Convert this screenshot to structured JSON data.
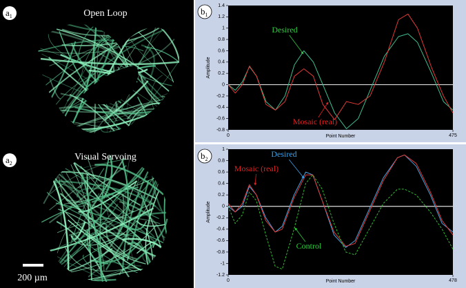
{
  "image_panels": [
    {
      "letter": "a",
      "index": "1",
      "title": "Open Loop"
    },
    {
      "letter": "a",
      "index": "2",
      "title": "Visual Servoing"
    }
  ],
  "scale_bar": "200 µm",
  "chart_data": [
    {
      "type": "line",
      "panel_letter": "b",
      "panel_index": "1",
      "x_label": "Point Number",
      "y_label": "Amplitude",
      "x": [
        0,
        15,
        30,
        45,
        60,
        80,
        100,
        120,
        140,
        160,
        180,
        200,
        225,
        250,
        275,
        300,
        330,
        360,
        380,
        400,
        430,
        455,
        475
      ],
      "series": [
        {
          "name": "Desired",
          "color": "#3fbf8f",
          "dash": false,
          "values": [
            0,
            -0.1,
            0.05,
            0.32,
            0.15,
            -0.3,
            -0.45,
            -0.2,
            0.35,
            0.6,
            0.4,
            0.0,
            -0.5,
            -0.78,
            -0.6,
            -0.1,
            0.5,
            0.85,
            0.9,
            0.75,
            0.2,
            -0.3,
            -0.45
          ]
        },
        {
          "name": "Mosaic (real)",
          "color": "#e03a3a",
          "dash": false,
          "values": [
            0,
            -0.15,
            0.0,
            0.33,
            0.15,
            -0.35,
            -0.45,
            -0.3,
            0.15,
            0.28,
            0.15,
            -0.35,
            -0.62,
            -0.3,
            -0.35,
            -0.2,
            0.4,
            1.15,
            1.25,
            1.0,
            0.3,
            -0.2,
            -0.5
          ]
        }
      ],
      "annotations": [
        {
          "text": "Desired",
          "color": "#2ecc40"
        },
        {
          "text": "Mosaic (real)",
          "color": "#e02020"
        }
      ],
      "xlim": [
        0,
        475
      ],
      "xticks": [
        0,
        475
      ],
      "ylim": [
        -0.8,
        1.4
      ],
      "yticks": [
        -0.8,
        -0.6,
        -0.4,
        -0.2,
        0,
        0.2,
        0.4,
        0.6,
        0.8,
        1,
        1.2,
        1.4
      ]
    },
    {
      "type": "line",
      "panel_letter": "b",
      "panel_index": "2",
      "x_label": "Point Number",
      "y_label": "Amplitude",
      "x": [
        0,
        15,
        30,
        45,
        60,
        80,
        100,
        115,
        140,
        165,
        180,
        200,
        225,
        250,
        270,
        300,
        330,
        360,
        375,
        400,
        430,
        455,
        478
      ],
      "series": [
        {
          "name": "Desired",
          "color": "#4aa3e0",
          "dash": false,
          "values": [
            0,
            -0.1,
            0.0,
            0.35,
            0.2,
            -0.2,
            -0.45,
            -0.35,
            0.2,
            0.6,
            0.55,
            0.1,
            -0.5,
            -0.72,
            -0.6,
            -0.05,
            0.5,
            0.85,
            0.9,
            0.7,
            0.2,
            -0.3,
            -0.45
          ]
        },
        {
          "name": "Mosaic (real)",
          "color": "#e03a3a",
          "dash": false,
          "values": [
            0.05,
            -0.1,
            0.05,
            0.38,
            0.2,
            -0.25,
            -0.45,
            -0.4,
            0.15,
            0.55,
            0.55,
            0.1,
            -0.45,
            -0.7,
            -0.65,
            -0.1,
            0.45,
            0.85,
            0.9,
            0.75,
            0.25,
            -0.25,
            -0.5
          ]
        },
        {
          "name": "Control",
          "color": "#33bb33",
          "dash": true,
          "values": [
            0,
            -0.3,
            -0.15,
            0.25,
            0.1,
            -0.5,
            -1.05,
            -1.1,
            -0.4,
            0.4,
            0.55,
            0.3,
            -0.3,
            -0.8,
            -0.85,
            -0.4,
            0.05,
            0.3,
            0.3,
            0.2,
            -0.1,
            -0.4,
            -0.75
          ]
        }
      ],
      "annotations": [
        {
          "text": "Mosaic (real)",
          "color": "#e02020"
        },
        {
          "text": "Desired",
          "color": "#3aa0e8"
        },
        {
          "text": "Control",
          "color": "#2ecc40"
        }
      ],
      "xlim": [
        0,
        478
      ],
      "xticks": [
        0,
        478
      ],
      "ylim": [
        -1.2,
        1
      ],
      "yticks": [
        -1.2,
        -1,
        -0.8,
        -0.6,
        -0.4,
        -0.2,
        0,
        0.2,
        0.4,
        0.6,
        0.8,
        1
      ]
    }
  ]
}
